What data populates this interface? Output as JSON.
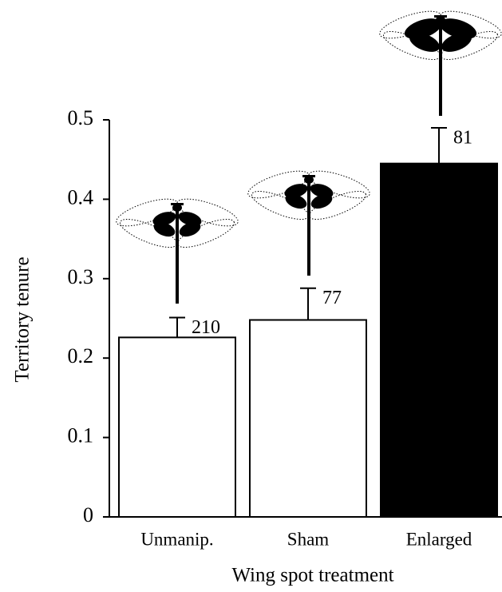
{
  "chart_data": {
    "type": "bar",
    "x_label": "Wing spot treatment",
    "y_label": "Territory tenure",
    "categories": [
      "Unmanip.",
      "Sham",
      "Enlarged"
    ],
    "values": [
      0.226,
      0.248,
      0.445
    ],
    "errors": [
      0.025,
      0.04,
      0.045
    ],
    "sample_sizes": [
      210,
      77,
      81
    ],
    "colors": [
      "#ffffff",
      "#ffffff",
      "#000000"
    ],
    "ylim": [
      0,
      0.5
    ],
    "yticks": [
      0,
      0.1,
      0.2,
      0.3,
      0.4,
      0.5
    ]
  }
}
